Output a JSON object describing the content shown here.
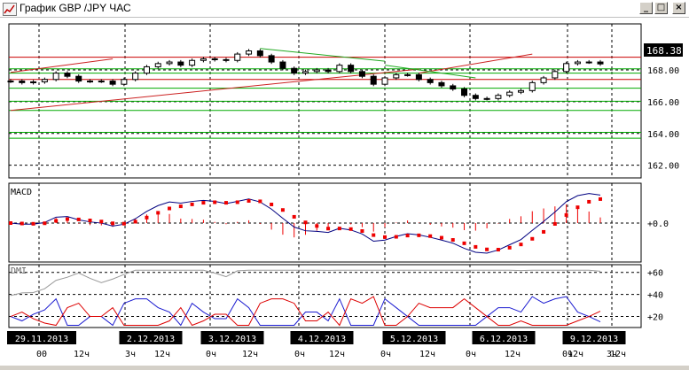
{
  "window": {
    "title": "График GBP /JPY  ЧАС",
    "minimize_glyph": "_",
    "maximize_glyph": "□",
    "close_glyph": "×",
    "icon": "chart-window-icon"
  },
  "colors": {
    "price": "#000000",
    "grid": "#000000",
    "support_line": "#00aa00",
    "resistance_line": "#cc0000",
    "trend_red": "#cc2222",
    "trend_green": "#22aa22",
    "macd_line": "#000080",
    "macd_signal": "#ee0000",
    "macd_hist": "#ee0000",
    "dmi_adx": "#999999",
    "dmi_plus": "#1a1ad0",
    "dmi_minus": "#dd0000",
    "date_label_bg": "#000000",
    "date_label_text": "#ffffff"
  },
  "chart_data": [
    {
      "type": "candlestick",
      "title": "",
      "ylim": [
        161.2,
        170.9
      ],
      "y_ticks": [
        162.0,
        164.0,
        166.0,
        168.0
      ],
      "y_tick_labels": [
        "162.00",
        "164.00",
        "166.00",
        "168.00"
      ],
      "last_price": 168.38,
      "last_price_label": "168.38",
      "horizontal_levels_red": [
        168.8,
        167.4
      ],
      "horizontal_levels_green": [
        168.07,
        167.8,
        166.85,
        166.03,
        165.45,
        164.07,
        163.7
      ],
      "dates": [
        "29.11.2013",
        "2.12.2013",
        "3.12.2013",
        "4.12.2013",
        "5.12.2013",
        "6.12.2013",
        "9.12.2013"
      ],
      "close": [
        167.3,
        167.2,
        167.25,
        167.4,
        167.8,
        167.6,
        167.3,
        167.3,
        167.3,
        167.1,
        167.4,
        167.8,
        168.2,
        168.4,
        168.5,
        168.3,
        168.6,
        168.7,
        168.65,
        168.6,
        169.0,
        169.2,
        168.9,
        168.5,
        168.1,
        167.8,
        167.9,
        168.0,
        167.9,
        168.3,
        167.9,
        167.6,
        167.1,
        167.5,
        167.7,
        167.7,
        167.4,
        167.2,
        167.0,
        166.8,
        166.4,
        166.2,
        166.2,
        166.4,
        166.6,
        166.7,
        167.2,
        167.5,
        167.9,
        168.4,
        168.5,
        168.5,
        168.38
      ]
    },
    {
      "type": "line",
      "title": "MACD",
      "y_tick_labels": [
        "+0.0"
      ],
      "series": [
        {
          "name": "MACD"
        }
      ]
    },
    {
      "type": "line",
      "title": "DMI",
      "ylim": [
        10,
        67
      ],
      "y_tick_labels": [
        "+60",
        "+40",
        "+20"
      ],
      "series": [
        {
          "name": "DMI"
        }
      ]
    }
  ],
  "x_axis": {
    "dates": [
      "29.11.2013",
      "2.12.2013",
      "3.12.2013",
      "4.12.2013",
      "5.12.2013",
      "6.12.2013",
      "9.12.2013"
    ],
    "hour_labels": [
      "0",
      "0",
      "12ч",
      "3ч",
      "12ч",
      "0ч",
      "12ч",
      "0ч",
      "12ч",
      "0ч",
      "12ч",
      "0ч",
      "12ч",
      "0ч",
      "12ч",
      "3ч",
      "12ч"
    ]
  }
}
